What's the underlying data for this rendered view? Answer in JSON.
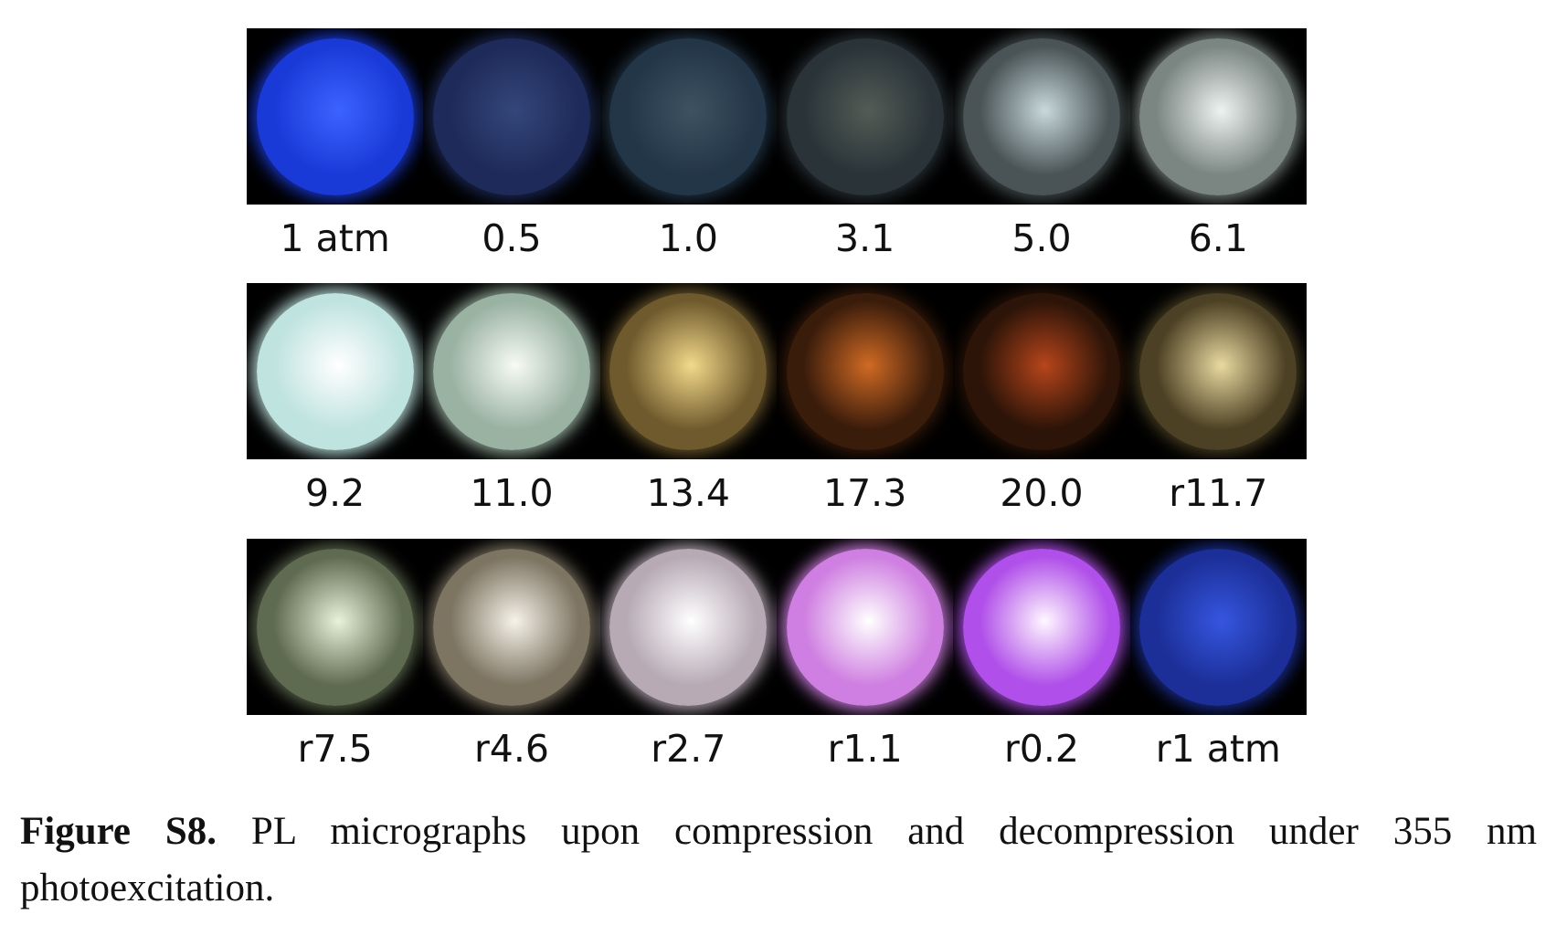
{
  "figure": {
    "rows": [
      {
        "panels": [
          {
            "label": "1 atm",
            "color": "#1a3ad8",
            "glow": "#3c63ff"
          },
          {
            "label": "0.5",
            "color": "#1e2b5a",
            "glow": "#34467a"
          },
          {
            "label": "1.0",
            "color": "#233648",
            "glow": "#3e5262"
          },
          {
            "label": "3.1",
            "color": "#2a3338",
            "glow": "#535c55"
          },
          {
            "label": "5.0",
            "color": "#4a5456",
            "glow": "#c9d9dc"
          },
          {
            "label": "6.1",
            "color": "#7b8682",
            "glow": "#eef3f2"
          }
        ]
      },
      {
        "panels": [
          {
            "label": "9.2",
            "color": "#bfe3df",
            "glow": "#ffffff"
          },
          {
            "label": "11.0",
            "color": "#9ab2a2",
            "glow": "#f7fbf4"
          },
          {
            "label": "13.4",
            "color": "#6f5a2d",
            "glow": "#f3d98a"
          },
          {
            "label": "17.3",
            "color": "#3a1c0b",
            "glow": "#d06a24"
          },
          {
            "label": "20.0",
            "color": "#2c1408",
            "glow": "#b7451b"
          },
          {
            "label": "r11.7",
            "color": "#4c4124",
            "glow": "#e9d9a0"
          }
        ]
      },
      {
        "panels": [
          {
            "label": "r7.5",
            "color": "#5f6b50",
            "glow": "#e9f1da"
          },
          {
            "label": "r4.6",
            "color": "#7d7462",
            "glow": "#f6f3ea"
          },
          {
            "label": "r2.7",
            "color": "#b7aab5",
            "glow": "#ffffff"
          },
          {
            "label": "r1.1",
            "color": "#cf7fe1",
            "glow": "#ffffff"
          },
          {
            "label": "r0.2",
            "color": "#b04fe9",
            "glow": "#fff7ff"
          },
          {
            "label": "r1 atm",
            "color": "#1c2f98",
            "glow": "#3656e0"
          }
        ]
      }
    ]
  },
  "caption": {
    "label": "Figure S8.",
    "text": " PL micrographs upon compression and decompression under 355 nm photoexcitation."
  }
}
